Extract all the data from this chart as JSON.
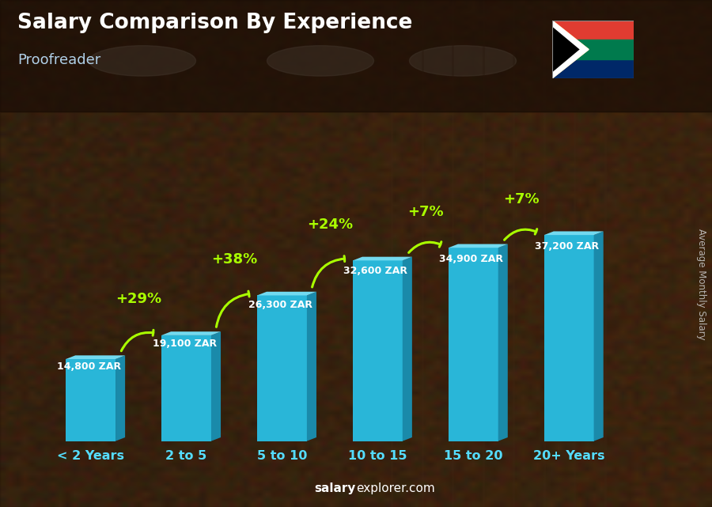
{
  "title": "Salary Comparison By Experience",
  "subtitle": "Proofreader",
  "ylabel": "Average Monthly Salary",
  "categories": [
    "< 2 Years",
    "2 to 5",
    "5 to 10",
    "10 to 15",
    "15 to 20",
    "20+ Years"
  ],
  "values": [
    14800,
    19100,
    26300,
    32600,
    34900,
    37200
  ],
  "labels": [
    "14,800 ZAR",
    "19,100 ZAR",
    "26,300 ZAR",
    "32,600 ZAR",
    "34,900 ZAR",
    "37,200 ZAR"
  ],
  "pct_changes": [
    null,
    "+29%",
    "+38%",
    "+24%",
    "+7%",
    "+7%"
  ],
  "bar_color_face": "#29b6d8",
  "bar_color_top": "#72daf0",
  "bar_color_side": "#1a8aaa",
  "background_dark": "#2a1a0e",
  "title_color": "#ffffff",
  "subtitle_color": "#b0d0e8",
  "label_color": "#ffffff",
  "pct_color": "#aaff00",
  "xtick_color": "#55ddff",
  "website_color": "#ffffff",
  "ylabel_color": "#cccccc",
  "figsize": [
    9.0,
    6.41
  ],
  "dpi": 100
}
